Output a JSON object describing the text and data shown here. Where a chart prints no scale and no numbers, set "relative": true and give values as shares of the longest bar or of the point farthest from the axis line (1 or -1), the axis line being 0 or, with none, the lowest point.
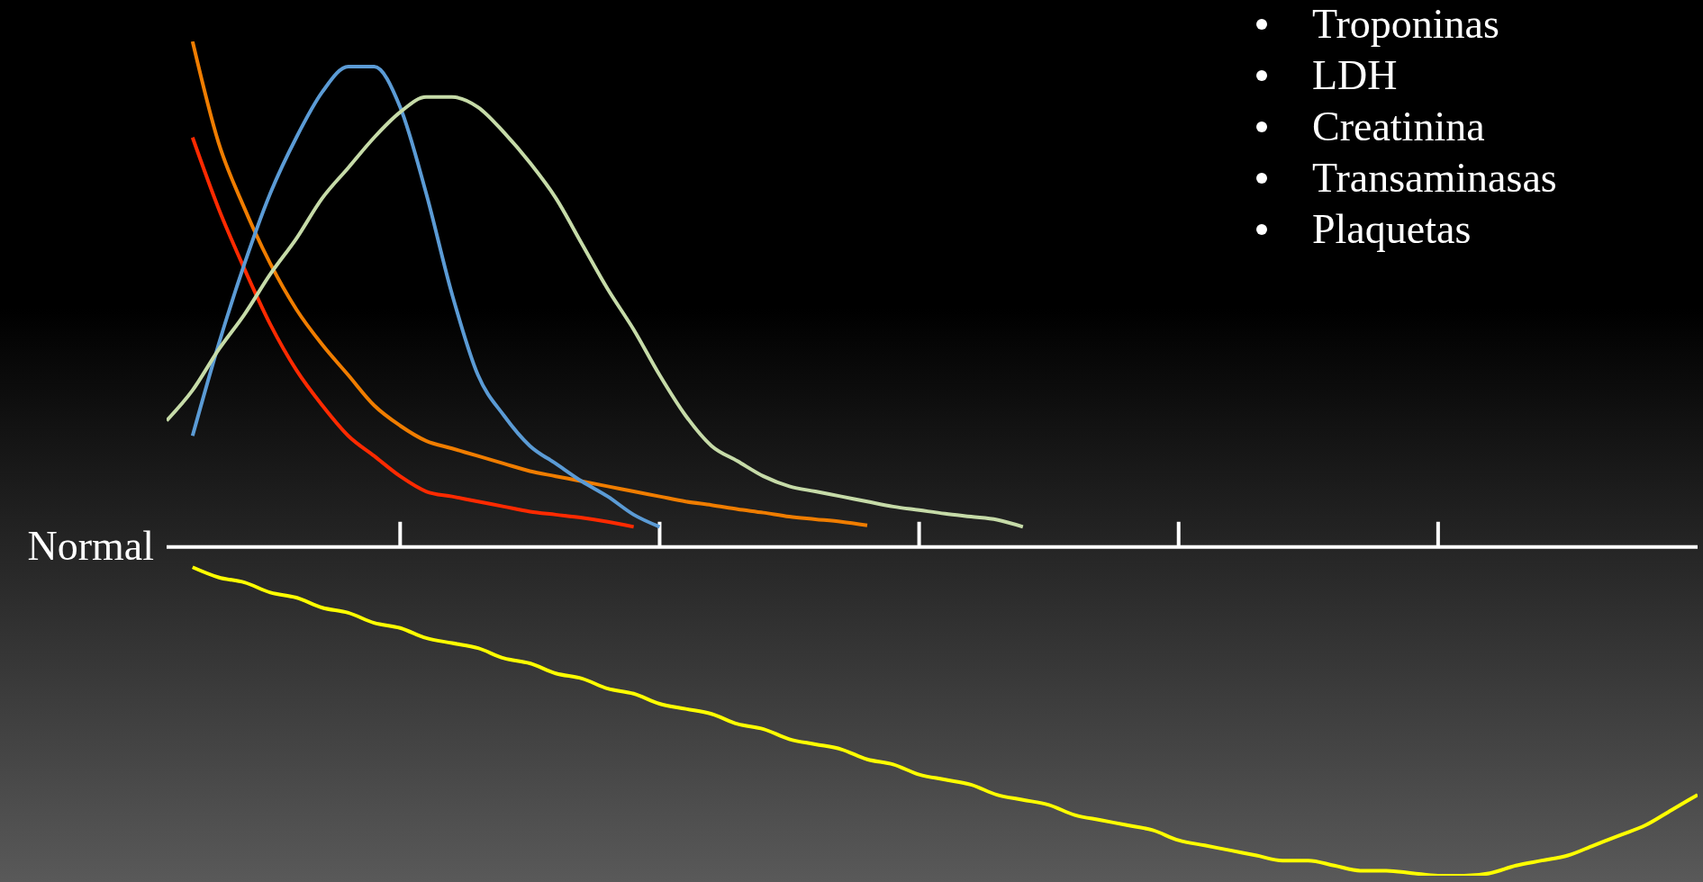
{
  "chart_data": {
    "type": "line",
    "relative": true,
    "marker": "none",
    "line_style": "solid",
    "categories": [
      null,
      null,
      null,
      null,
      null,
      null,
      null,
      null,
      null,
      null,
      null,
      null,
      null,
      null,
      null,
      null,
      null,
      null,
      null,
      null,
      null,
      null,
      null,
      null,
      null,
      null,
      null,
      null,
      null,
      null,
      null,
      null,
      null,
      null,
      null,
      null,
      null,
      null,
      null,
      null,
      null,
      null,
      null,
      null,
      null,
      null,
      null,
      null,
      null,
      null,
      null,
      null,
      null,
      null,
      null,
      null,
      null,
      null,
      null,
      null
    ],
    "series": [
      {
        "color": "#ff2a00",
        "values": [
          null,
          0.81,
          0.67,
          0.55,
          0.44,
          0.35,
          0.28,
          0.22,
          0.18,
          0.14,
          0.11,
          0.1,
          0.09,
          0.08,
          0.07,
          0.064,
          0.058,
          0.05,
          0.04,
          null,
          null,
          null,
          null,
          null,
          null,
          null,
          null,
          null,
          null,
          null,
          null,
          null,
          null,
          null,
          null,
          null,
          null,
          null,
          null,
          null,
          null,
          null,
          null,
          null,
          null,
          null,
          null,
          null,
          null,
          null,
          null,
          null,
          null,
          null,
          null,
          null,
          null,
          null,
          null,
          null
        ]
      },
      {
        "color": "#f07d00",
        "values": [
          null,
          1.0,
          0.8,
          0.67,
          0.56,
          0.47,
          0.4,
          0.34,
          0.28,
          0.24,
          0.21,
          0.195,
          0.18,
          0.165,
          0.15,
          0.14,
          0.13,
          0.12,
          0.11,
          0.1,
          0.09,
          0.083,
          0.075,
          0.068,
          0.06,
          0.055,
          0.05,
          0.043,
          null,
          null,
          null,
          null,
          null,
          null,
          null,
          null,
          null,
          null,
          null,
          null,
          null,
          null,
          null,
          null,
          null,
          null,
          null,
          null,
          null,
          null,
          null,
          null,
          null,
          null,
          null,
          null,
          null,
          null,
          null,
          null
        ]
      },
      {
        "color": "#5b9bd5",
        "values": [
          null,
          0.22,
          0.4,
          0.56,
          0.7,
          0.81,
          0.9,
          0.95,
          0.95,
          0.87,
          0.7,
          0.5,
          0.34,
          0.26,
          0.2,
          0.165,
          0.13,
          0.1,
          0.064,
          0.04,
          null,
          null,
          null,
          null,
          null,
          null,
          null,
          null,
          null,
          null,
          null,
          null,
          null,
          null,
          null,
          null,
          null,
          null,
          null,
          null,
          null,
          null,
          null,
          null,
          null,
          null,
          null,
          null,
          null,
          null,
          null,
          null,
          null,
          null,
          null,
          null,
          null,
          null,
          null,
          null
        ]
      },
      {
        "color": "#c6dba8",
        "values": [
          0.25,
          0.31,
          0.39,
          0.46,
          0.54,
          0.61,
          0.69,
          0.75,
          0.81,
          0.86,
          0.89,
          0.89,
          0.87,
          0.82,
          0.76,
          0.69,
          0.6,
          0.51,
          0.43,
          0.34,
          0.26,
          0.2,
          0.17,
          0.14,
          0.12,
          0.11,
          0.1,
          0.09,
          0.08,
          0.073,
          0.066,
          0.06,
          0.054,
          0.04,
          null,
          null,
          null,
          null,
          null,
          null,
          null,
          null,
          null,
          null,
          null,
          null,
          null,
          null,
          null,
          null,
          null,
          null,
          null,
          null,
          null,
          null,
          null,
          null,
          null,
          null
        ]
      },
      {
        "color": "#ffff00",
        "values": [
          null,
          -0.04,
          -0.06,
          -0.07,
          -0.09,
          -0.1,
          -0.12,
          -0.13,
          -0.15,
          -0.16,
          -0.18,
          -0.19,
          -0.2,
          -0.22,
          -0.23,
          -0.25,
          -0.26,
          -0.28,
          -0.29,
          -0.31,
          -0.32,
          -0.33,
          -0.35,
          -0.36,
          -0.38,
          -0.39,
          -0.4,
          -0.42,
          -0.43,
          -0.45,
          -0.46,
          -0.47,
          -0.49,
          -0.5,
          -0.51,
          -0.53,
          -0.54,
          -0.55,
          -0.56,
          -0.58,
          -0.59,
          -0.6,
          -0.61,
          -0.62,
          -0.62,
          -0.63,
          -0.64,
          -0.64,
          -0.645,
          -0.65,
          -0.65,
          -0.645,
          -0.63,
          -0.62,
          -0.61,
          -0.59,
          -0.57,
          -0.55,
          -0.52,
          -0.49
        ]
      }
    ],
    "ref_lines": [
      {
        "axis": "y",
        "value": 0,
        "label": "Normal",
        "color": "#ffffff"
      }
    ],
    "annotations": [
      "Troponinas",
      "LDH",
      "Creatinina",
      "Transaminasas",
      "Plaquetas"
    ]
  }
}
